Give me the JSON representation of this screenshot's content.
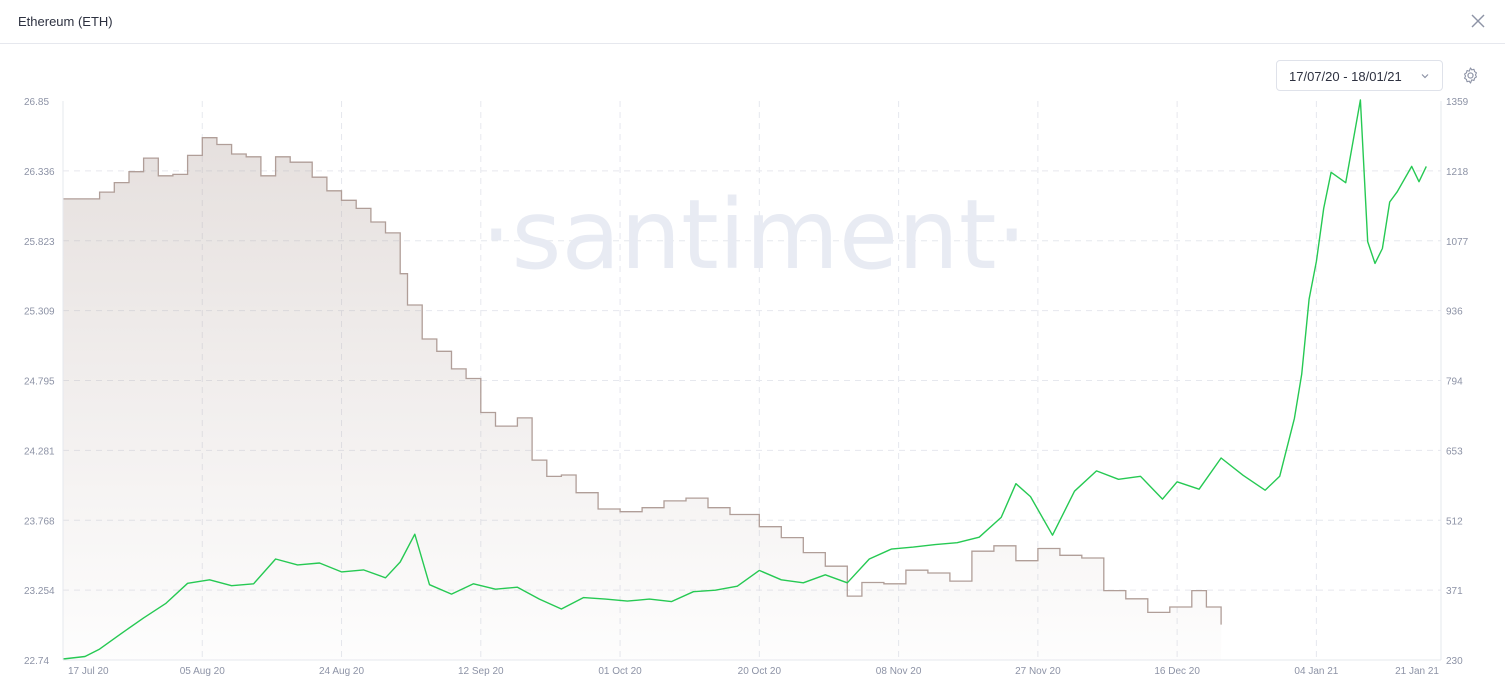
{
  "window": {
    "title": "Ethereum (ETH)",
    "close_icon": "close-icon"
  },
  "toolbar": {
    "date_range": "17/07/20 - 18/01/21",
    "date_icon": "chevron-down-icon",
    "settings_icon": "gear-icon"
  },
  "watermark": "·santiment·",
  "colors": {
    "series_brown": "#b09e98",
    "series_green": "#26c953",
    "grid": "#e6e8ee"
  },
  "chart_data": {
    "type": "line",
    "title": "",
    "xlabel": "",
    "ylabel": "",
    "grid": true,
    "legend": "none",
    "x_ticks": [
      "17 Jul 20",
      "05 Aug 20",
      "24 Aug 20",
      "12 Sep 20",
      "01 Oct 20",
      "20 Oct 20",
      "08 Nov 20",
      "27 Nov 20",
      "16 Dec 20",
      "04 Jan 21",
      "21 Jan 21"
    ],
    "y_left_ticks": [
      "26.85",
      "26.336",
      "25.823",
      "25.309",
      "24.795",
      "24.281",
      "23.768",
      "23.254",
      "22.74"
    ],
    "y_right_ticks": [
      "1359",
      "1218",
      "1077",
      "936",
      "794",
      "653",
      "512",
      "371",
      "230"
    ],
    "y_left_range": [
      22.74,
      26.85
    ],
    "y_right_range": [
      230,
      1359
    ],
    "x_range": [
      "2020-07-17",
      "2021-01-21"
    ],
    "series": [
      {
        "axis": "left",
        "style": "area",
        "x": [
          "2020-07-17",
          "2020-07-20",
          "2020-07-22",
          "2020-07-24",
          "2020-07-26",
          "2020-07-28",
          "2020-07-30",
          "2020-08-01",
          "2020-08-03",
          "2020-08-05",
          "2020-08-07",
          "2020-08-09",
          "2020-08-11",
          "2020-08-13",
          "2020-08-15",
          "2020-08-17",
          "2020-08-20",
          "2020-08-22",
          "2020-08-24",
          "2020-08-26",
          "2020-08-28",
          "2020-08-30",
          "2020-09-01",
          "2020-09-02",
          "2020-09-04",
          "2020-09-06",
          "2020-09-08",
          "2020-09-10",
          "2020-09-12",
          "2020-09-14",
          "2020-09-17",
          "2020-09-19",
          "2020-09-21",
          "2020-09-23",
          "2020-09-25",
          "2020-09-28",
          "2020-10-01",
          "2020-10-04",
          "2020-10-07",
          "2020-10-10",
          "2020-10-13",
          "2020-10-16",
          "2020-10-20",
          "2020-10-23",
          "2020-10-26",
          "2020-10-29",
          "2020-11-01",
          "2020-11-03",
          "2020-11-06",
          "2020-11-09",
          "2020-11-12",
          "2020-11-15",
          "2020-11-18",
          "2020-11-21",
          "2020-11-24",
          "2020-11-27",
          "2020-11-30",
          "2020-12-03",
          "2020-12-06",
          "2020-12-09",
          "2020-12-12",
          "2020-12-15",
          "2020-12-18",
          "2020-12-20",
          "2020-12-22"
        ],
        "values": [
          26.13,
          26.13,
          26.18,
          26.25,
          26.33,
          26.43,
          26.3,
          26.31,
          26.45,
          26.58,
          26.53,
          26.46,
          26.44,
          26.3,
          26.44,
          26.4,
          26.29,
          26.19,
          26.12,
          26.06,
          25.96,
          25.88,
          25.58,
          25.35,
          25.1,
          25.01,
          24.88,
          24.81,
          24.56,
          24.46,
          24.52,
          24.21,
          24.09,
          24.1,
          23.97,
          23.85,
          23.83,
          23.86,
          23.91,
          23.93,
          23.86,
          23.81,
          23.72,
          23.64,
          23.53,
          23.43,
          23.21,
          23.31,
          23.3,
          23.4,
          23.38,
          23.32,
          23.54,
          23.58,
          23.47,
          23.56,
          23.51,
          23.49,
          23.25,
          23.19,
          23.09,
          23.13,
          23.25,
          23.13,
          23.0
        ]
      },
      {
        "axis": "right",
        "style": "line",
        "x": [
          "2020-07-17",
          "2020-07-20",
          "2020-07-22",
          "2020-07-25",
          "2020-07-28",
          "2020-07-31",
          "2020-08-03",
          "2020-08-06",
          "2020-08-09",
          "2020-08-12",
          "2020-08-15",
          "2020-08-18",
          "2020-08-21",
          "2020-08-24",
          "2020-08-27",
          "2020-08-30",
          "2020-09-01",
          "2020-09-03",
          "2020-09-05",
          "2020-09-08",
          "2020-09-11",
          "2020-09-14",
          "2020-09-17",
          "2020-09-20",
          "2020-09-23",
          "2020-09-26",
          "2020-09-29",
          "2020-10-02",
          "2020-10-05",
          "2020-10-08",
          "2020-10-11",
          "2020-10-14",
          "2020-10-17",
          "2020-10-20",
          "2020-10-23",
          "2020-10-26",
          "2020-10-29",
          "2020-11-01",
          "2020-11-04",
          "2020-11-07",
          "2020-11-10",
          "2020-11-13",
          "2020-11-16",
          "2020-11-19",
          "2020-11-22",
          "2020-11-24",
          "2020-11-26",
          "2020-11-29",
          "2020-12-02",
          "2020-12-05",
          "2020-12-08",
          "2020-12-11",
          "2020-12-14",
          "2020-12-16",
          "2020-12-19",
          "2020-12-22",
          "2020-12-25",
          "2020-12-28",
          "2020-12-30",
          "2021-01-01",
          "2021-01-02",
          "2021-01-03",
          "2021-01-04",
          "2021-01-05",
          "2021-01-06",
          "2021-01-08",
          "2021-01-10",
          "2021-01-11",
          "2021-01-12",
          "2021-01-13",
          "2021-01-14",
          "2021-01-15",
          "2021-01-17",
          "2021-01-18",
          "2021-01-19"
        ],
        "values": [
          232,
          237,
          252,
          284,
          315,
          344,
          385,
          392,
          380,
          384,
          434,
          422,
          426,
          408,
          412,
          396,
          428,
          484,
          382,
          363,
          384,
          373,
          377,
          353,
          333,
          356,
          353,
          349,
          353,
          348,
          368,
          371,
          379,
          411,
          392,
          386,
          402,
          386,
          434,
          454,
          458,
          463,
          467,
          478,
          518,
          586,
          560,
          482,
          571,
          612,
          595,
          601,
          555,
          590,
          575,
          638,
          603,
          573,
          601,
          718,
          807,
          959,
          1035,
          1142,
          1215,
          1194,
          1361,
          1075,
          1031,
          1061,
          1155,
          1175,
          1227,
          1196,
          1227
        ]
      }
    ]
  }
}
